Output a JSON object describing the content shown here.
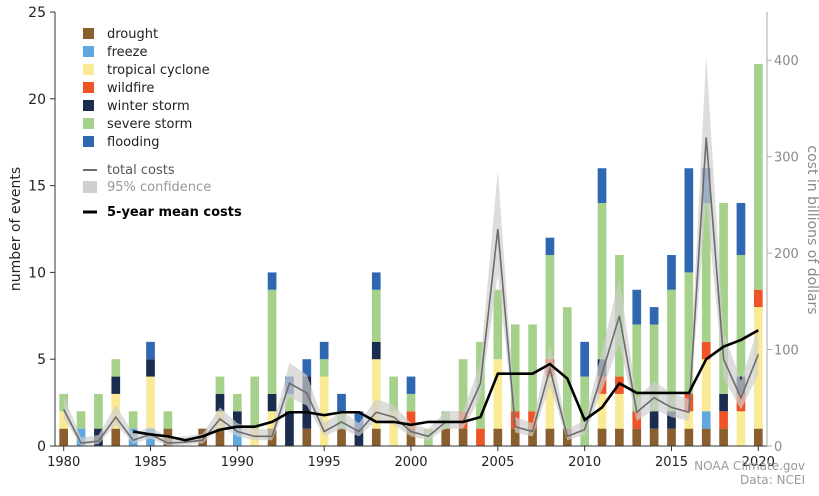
{
  "chart_data": {
    "type": "bar",
    "ylabel_left": "number of events",
    "ylabel_right": "cost in billions of dollars",
    "ylim_left": [
      0,
      25
    ],
    "ylim_right": [
      0,
      450
    ],
    "left_ticks": [
      "0",
      "5",
      "10",
      "15",
      "20",
      "25"
    ],
    "right_ticks": [
      "0",
      "100",
      "200",
      "300",
      "400"
    ],
    "x_ticks": [
      "1980",
      "1985",
      "1990",
      "1995",
      "2000",
      "2005",
      "2010",
      "2015",
      "2020"
    ],
    "years": [
      1980,
      1981,
      1982,
      1983,
      1984,
      1985,
      1986,
      1987,
      1988,
      1989,
      1990,
      1991,
      1992,
      1993,
      1994,
      1995,
      1996,
      1997,
      1998,
      1999,
      2000,
      2001,
      2002,
      2003,
      2004,
      2005,
      2006,
      2007,
      2008,
      2009,
      2010,
      2011,
      2012,
      2013,
      2014,
      2015,
      2016,
      2017,
      2018,
      2019,
      2020
    ],
    "series": [
      {
        "name": "drought",
        "color": "#8B5E2E",
        "values": [
          1,
          0,
          0,
          1,
          0,
          0,
          1,
          0,
          1,
          1,
          0,
          0,
          1,
          0,
          1,
          0,
          1,
          0,
          1,
          0,
          1,
          0,
          1,
          1,
          0,
          1,
          1,
          1,
          1,
          1,
          0,
          1,
          1,
          1,
          1,
          1,
          1,
          1,
          1,
          0,
          1
        ]
      },
      {
        "name": "freeze",
        "color": "#5FA8E0",
        "values": [
          0,
          1,
          0,
          0,
          1,
          1,
          0,
          0,
          0,
          0,
          1,
          0,
          0,
          0,
          0,
          0,
          0,
          0,
          0,
          0,
          0,
          0,
          0,
          0,
          0,
          0,
          0,
          0,
          0,
          0,
          0,
          0,
          0,
          0,
          0,
          0,
          0,
          1,
          0,
          0,
          0
        ]
      },
      {
        "name": "tropical cyclone",
        "color": "#FBEA95",
        "values": [
          1,
          0,
          0,
          2,
          0,
          3,
          0,
          0,
          0,
          1,
          0,
          1,
          1,
          0,
          0,
          4,
          0,
          0,
          4,
          2,
          0,
          0,
          0,
          0,
          0,
          4,
          0,
          0,
          3,
          0,
          0,
          2,
          2,
          0,
          0,
          0,
          1,
          3,
          0,
          2,
          7
        ]
      },
      {
        "name": "wildfire",
        "color": "#EE5425",
        "values": [
          0,
          0,
          0,
          0,
          0,
          0,
          0,
          0,
          0,
          0,
          0,
          0,
          0,
          0,
          0,
          0,
          0,
          0,
          0,
          0,
          1,
          0,
          0,
          1,
          1,
          0,
          1,
          1,
          1,
          0,
          0,
          1,
          1,
          1,
          0,
          0,
          1,
          1,
          1,
          1,
          1
        ]
      },
      {
        "name": "winter storm",
        "color": "#1B2D4F",
        "values": [
          0,
          0,
          1,
          1,
          0,
          1,
          0,
          0,
          0,
          1,
          1,
          0,
          1,
          2,
          3,
          0,
          0,
          1,
          1,
          0,
          0,
          0,
          0,
          0,
          0,
          0,
          0,
          0,
          0,
          0,
          0,
          1,
          0,
          0,
          1,
          1,
          0,
          0,
          1,
          1,
          0
        ]
      },
      {
        "name": "severe storm",
        "color": "#A6D18B",
        "values": [
          1,
          1,
          2,
          1,
          1,
          0,
          1,
          0,
          0,
          1,
          1,
          3,
          6,
          1,
          0,
          1,
          1,
          0,
          3,
          2,
          1,
          1,
          1,
          3,
          5,
          4,
          5,
          5,
          6,
          7,
          4,
          9,
          7,
          5,
          5,
          7,
          7,
          8,
          11,
          7,
          13
        ]
      },
      {
        "name": "flooding",
        "color": "#2F67B1",
        "values": [
          0,
          0,
          0,
          0,
          0,
          1,
          0,
          0,
          0,
          0,
          0,
          0,
          1,
          1,
          1,
          1,
          1,
          1,
          1,
          0,
          1,
          0,
          0,
          0,
          0,
          0,
          0,
          0,
          1,
          0,
          2,
          2,
          0,
          2,
          1,
          2,
          6,
          2,
          0,
          3,
          0
        ]
      }
    ],
    "line_series": [
      {
        "name": "total costs",
        "color": "#6c6c6c",
        "values": [
          38,
          3,
          5,
          30,
          6,
          12,
          3,
          4,
          6,
          28,
          15,
          10,
          10,
          65,
          55,
          15,
          25,
          15,
          35,
          30,
          15,
          10,
          25,
          25,
          65,
          225,
          20,
          15,
          80,
          10,
          17,
          75,
          135,
          35,
          50,
          40,
          35,
          320,
          90,
          50,
          95
        ]
      },
      {
        "name": "95% confidence",
        "color": "#cfcfcf"
      },
      {
        "name": "5-year mean costs",
        "color": "#000000",
        "values": [
          null,
          null,
          null,
          null,
          15,
          12,
          10,
          6,
          10,
          17,
          20,
          20,
          25,
          35,
          35,
          32,
          35,
          35,
          25,
          25,
          22,
          25,
          25,
          25,
          30,
          75,
          75,
          75,
          85,
          70,
          27,
          40,
          65,
          55,
          55,
          55,
          55,
          90,
          103,
          110,
          120
        ]
      }
    ],
    "legend_position": "top-left",
    "grid": false
  },
  "credits": {
    "line1": "NOAA Climate.gov",
    "line2": "Data: NCEI"
  }
}
